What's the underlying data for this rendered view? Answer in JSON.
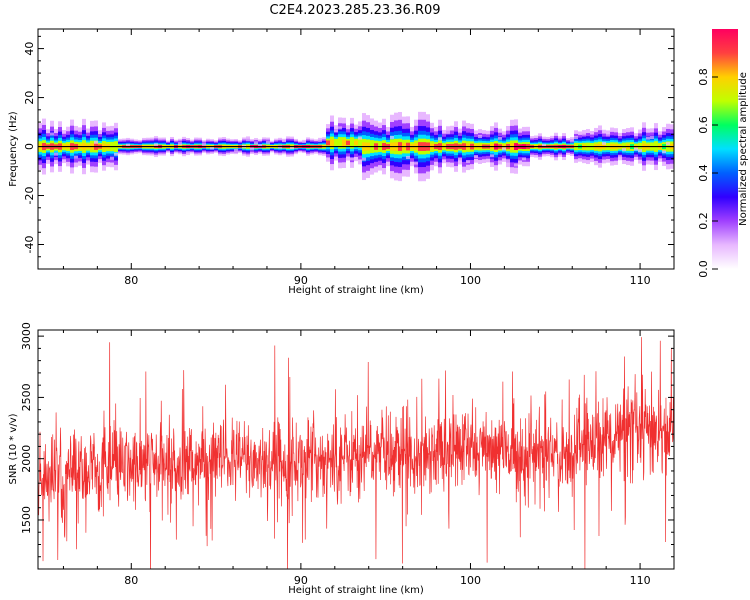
{
  "title": "C2E4.2023.285.23.36.R09",
  "colors": {
    "snr_line": "#f03030",
    "center_line": "#000000",
    "colormap": [
      "#ffffff",
      "#e8b8ff",
      "#a040ff",
      "#3000ff",
      "#0060ff",
      "#00e0ff",
      "#00ff60",
      "#c0ff00",
      "#ffd000",
      "#ff4040",
      "#ff0060"
    ]
  },
  "chart_data": [
    {
      "type": "heatmap",
      "xlabel": "Height of straight line (km)",
      "ylabel": "Frequency (Hz)",
      "xlim": [
        74.5,
        112
      ],
      "ylim": [
        -50,
        48
      ],
      "xticks": [
        80,
        90,
        100,
        110
      ],
      "yticks": [
        40,
        20,
        0,
        -20,
        -40
      ],
      "colorbar": {
        "label": "Normalized spectral amplitude",
        "range": [
          0,
          1
        ],
        "ticks": [
          "0.0",
          "0.2",
          "0.4",
          "0.6",
          "0.8"
        ]
      },
      "band": {
        "center_hz": 0,
        "segments": [
          {
            "x0": 74.5,
            "x1": 79.3,
            "freq_offset_hz": 0,
            "half_width_hz": 4,
            "peak": 0.95
          },
          {
            "x0": 79.3,
            "x1": 91.5,
            "freq_offset_hz": 0,
            "half_width_hz": 1.5,
            "peak": 1.0
          },
          {
            "x0": 91.5,
            "x1": 93.5,
            "freq_offset_hz": 1.5,
            "half_width_hz": 4,
            "peak": 0.9
          },
          {
            "x0": 93.5,
            "x1": 97.5,
            "freq_offset_hz": 0,
            "half_width_hz": 5,
            "peak": 0.95
          },
          {
            "x0": 97.5,
            "x1": 103.5,
            "freq_offset_hz": 0,
            "half_width_hz": 4,
            "peak": 1.0
          },
          {
            "x0": 103.5,
            "x1": 106,
            "freq_offset_hz": 0,
            "half_width_hz": 2,
            "peak": 1.0
          },
          {
            "x0": 106,
            "x1": 112,
            "freq_offset_hz": 0,
            "half_width_hz": 3.5,
            "peak": 0.85
          }
        ]
      }
    },
    {
      "type": "line",
      "xlabel": "Height of straight line (km)",
      "ylabel": "SNR (10 * v/v)",
      "xlim": [
        74.5,
        112
      ],
      "ylim": [
        1100,
        3050
      ],
      "xticks": [
        80,
        90,
        100,
        110
      ],
      "yticks": [
        3000,
        2500,
        2000,
        1500
      ],
      "series": [
        {
          "trend_x": [
            74.5,
            80,
            85,
            90,
            95,
            100,
            105,
            108,
            112
          ],
          "trend_y": [
            1850,
            1930,
            1980,
            1980,
            2050,
            2080,
            2020,
            2180,
            2230
          ],
          "spread": 380,
          "samples": 1900
        }
      ]
    }
  ]
}
